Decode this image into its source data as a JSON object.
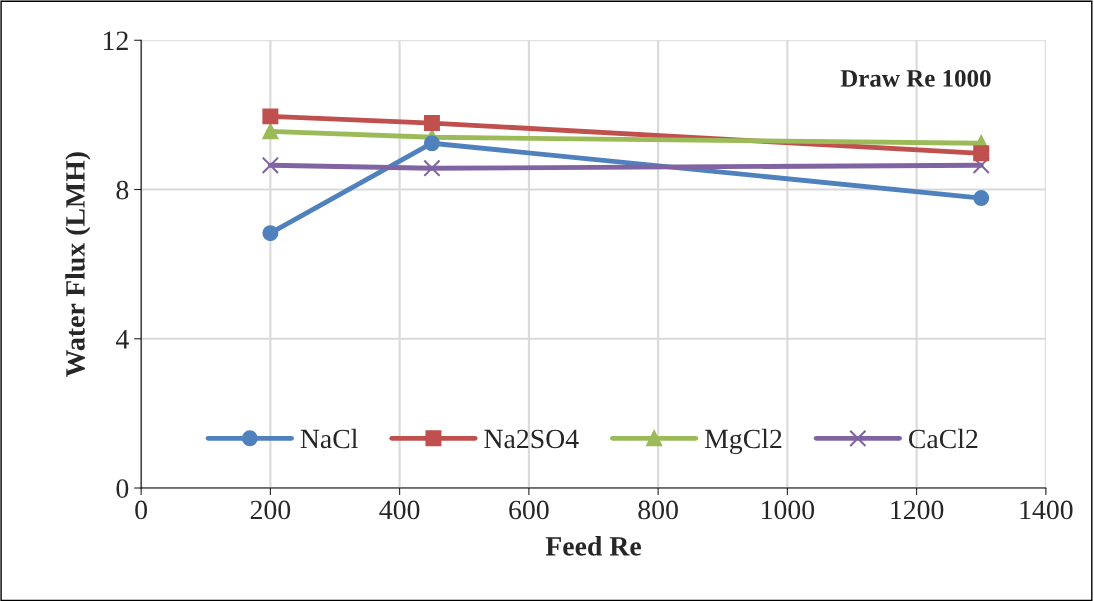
{
  "chart_data": {
    "type": "line",
    "xlabel": "Feed Re",
    "ylabel": "Water Flux (LMH)",
    "x": [
      200,
      450,
      1300
    ],
    "series": [
      {
        "name": "NaCl",
        "color": "#4f81bd",
        "marker": "circle",
        "values": [
          6.83,
          9.24,
          7.77
        ]
      },
      {
        "name": "Na2SO4",
        "color": "#c0504d",
        "marker": "square",
        "values": [
          9.96,
          9.78,
          8.97
        ]
      },
      {
        "name": "MgCl2",
        "color": "#9bbb59",
        "marker": "triangle",
        "values": [
          9.56,
          9.4,
          9.24
        ]
      },
      {
        "name": "CaCl2",
        "color": "#8064a2",
        "marker": "cross",
        "values": [
          8.65,
          8.57,
          8.65
        ]
      }
    ],
    "xlim": [
      0,
      1400
    ],
    "xticks": [
      0,
      200,
      400,
      600,
      800,
      1000,
      1200,
      1400
    ],
    "ylim": [
      0,
      12
    ],
    "yticks": [
      0,
      4,
      8,
      12
    ],
    "grid": true,
    "legend": "bottom",
    "line_style": "solid",
    "annotations": [
      "Draw Re 1000"
    ]
  }
}
